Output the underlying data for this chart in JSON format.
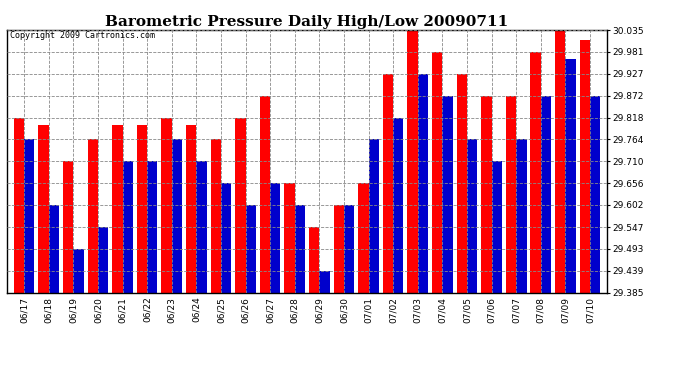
{
  "title": "Barometric Pressure Daily High/Low 20090711",
  "copyright": "Copyright 2009 Cartronics.com",
  "bar_width": 0.42,
  "baseline": 29.385,
  "ylim": [
    29.385,
    30.035
  ],
  "yticks": [
    29.385,
    29.439,
    29.493,
    29.547,
    29.602,
    29.656,
    29.71,
    29.764,
    29.818,
    29.872,
    29.927,
    29.981,
    30.035
  ],
  "high_color": "#ff0000",
  "low_color": "#0000cc",
  "background_color": "#ffffff",
  "grid_color": "#888888",
  "dates": [
    "06/17",
    "06/18",
    "06/19",
    "06/20",
    "06/21",
    "06/22",
    "06/23",
    "06/24",
    "06/25",
    "06/26",
    "06/27",
    "06/28",
    "06/29",
    "06/30",
    "07/01",
    "07/02",
    "07/03",
    "07/04",
    "07/05",
    "07/06",
    "07/07",
    "07/08",
    "07/09",
    "07/10"
  ],
  "highs": [
    29.818,
    29.8,
    29.71,
    29.764,
    29.8,
    29.8,
    29.818,
    29.8,
    29.764,
    29.818,
    29.872,
    29.656,
    29.547,
    29.602,
    29.656,
    29.927,
    30.035,
    29.981,
    29.927,
    29.872,
    29.872,
    29.981,
    30.035,
    30.01
  ],
  "lows": [
    29.764,
    29.602,
    29.493,
    29.547,
    29.71,
    29.71,
    29.764,
    29.71,
    29.656,
    29.602,
    29.656,
    29.602,
    29.439,
    29.602,
    29.764,
    29.818,
    29.927,
    29.872,
    29.764,
    29.71,
    29.764,
    29.872,
    29.964,
    29.872
  ],
  "title_fontsize": 11,
  "tick_fontsize": 6.5,
  "copyright_fontsize": 6
}
